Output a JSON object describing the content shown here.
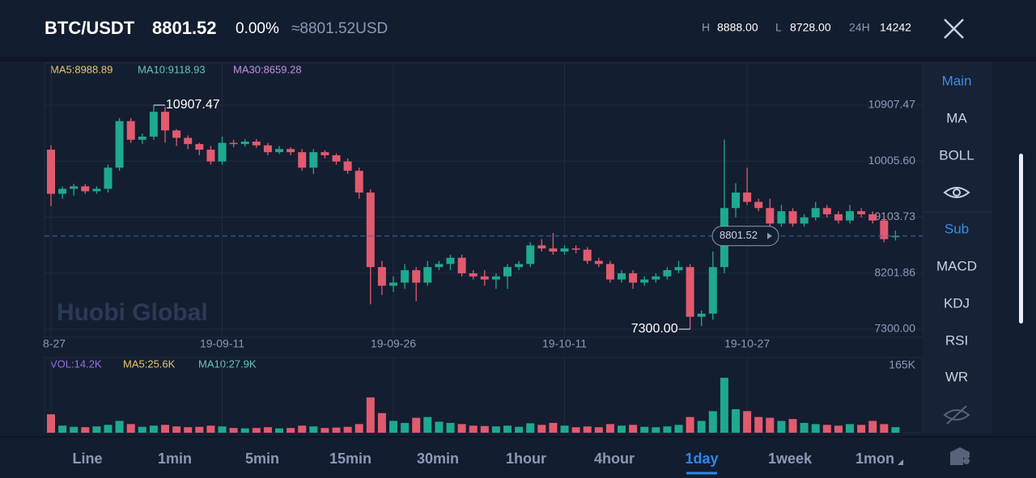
{
  "header": {
    "pair": "BTC/USDT",
    "price": "8801.52",
    "change": "0.00%",
    "usd": "≈8801.52USD",
    "high_label": "H",
    "high": "8888.00",
    "low_label": "L",
    "low": "8728.00",
    "vol_label": "24H",
    "vol": "14242"
  },
  "legend": {
    "ma5": "MA5:8988.89",
    "ma10": "MA10:9118.93",
    "ma30": "MA30:8659.28"
  },
  "vol_legend": {
    "vol": "VOL:14.2K",
    "ma5": "MA5:25.6K",
    "ma10": "MA10:27.9K"
  },
  "watermark": "Huobi Global",
  "sidebar": [
    "Main",
    "MA",
    "BOLL",
    "Sub",
    "MACD",
    "KDJ",
    "RSI",
    "WR"
  ],
  "tabs": [
    "Line",
    "1min",
    "5min",
    "15min",
    "30min",
    "1hour",
    "4hour",
    "1day",
    "1week",
    "1mon"
  ],
  "chart_data": {
    "type": "candlestick",
    "categories": [
      "8-27",
      null,
      null,
      null,
      null,
      null,
      null,
      null,
      null,
      null,
      null,
      null,
      null,
      null,
      null,
      "19-09-11",
      null,
      null,
      null,
      null,
      null,
      null,
      null,
      null,
      null,
      null,
      null,
      null,
      null,
      null,
      "19-09-26",
      null,
      null,
      null,
      null,
      null,
      null,
      null,
      null,
      null,
      null,
      null,
      null,
      null,
      null,
      "19-10-11",
      null,
      null,
      null,
      null,
      null,
      null,
      null,
      null,
      null,
      null,
      null,
      null,
      null,
      null,
      null,
      "19-10-27",
      null,
      null,
      null,
      null,
      null,
      null,
      null,
      null,
      null,
      null,
      null,
      null,
      null
    ],
    "open": [
      10190,
      9480,
      9560,
      9600,
      9520,
      9560,
      9900,
      10650,
      10350,
      10400,
      10800,
      10500,
      10380,
      10280,
      10190,
      10000,
      10300,
      10280,
      10320,
      10260,
      10150,
      10200,
      10150,
      9900,
      10150,
      10100,
      10000,
      9850,
      9500,
      8300,
      8000,
      8050,
      8250,
      8050,
      8300,
      8350,
      8450,
      8200,
      8150,
      8100,
      8150,
      8300,
      8350,
      8650,
      8600,
      8550,
      8600,
      8580,
      8400,
      8350,
      8100,
      8200,
      8050,
      8100,
      8150,
      8250,
      8300,
      7500,
      7550,
      8300,
      9250,
      9500,
      9350,
      9250,
      9000,
      9200,
      9000,
      9100,
      9250,
      9150,
      9050,
      9200,
      9150,
      9050,
      8800
    ],
    "high": [
      10260,
      9600,
      9640,
      9640,
      9600,
      9950,
      10700,
      10700,
      10450,
      10907.47,
      10880,
      10520,
      10420,
      10300,
      10250,
      10400,
      10350,
      10360,
      10360,
      10300,
      10250,
      10230,
      10200,
      10200,
      10180,
      10130,
      10050,
      9900,
      9550,
      8400,
      8150,
      8350,
      8300,
      8400,
      8400,
      8500,
      8500,
      8250,
      8250,
      8200,
      8350,
      8400,
      8700,
      8750,
      8850,
      8650,
      8650,
      8620,
      8450,
      8400,
      8250,
      8250,
      8150,
      8200,
      8300,
      8400,
      8350,
      7600,
      8550,
      10350,
      9650,
      9900,
      9400,
      9400,
      9300,
      9250,
      9150,
      9350,
      9300,
      9200,
      9300,
      9250,
      9200,
      9100,
      8888
    ],
    "low": [
      9280,
      9400,
      9450,
      9480,
      9480,
      9500,
      9850,
      10300,
      10280,
      10350,
      10300,
      10250,
      10200,
      10100,
      9950,
      9950,
      10230,
      10240,
      10220,
      10100,
      10120,
      10100,
      9850,
      9800,
      10050,
      9950,
      9800,
      9400,
      7700,
      7850,
      7900,
      7950,
      7750,
      8000,
      8250,
      8250,
      8150,
      8100,
      8000,
      7950,
      7950,
      8250,
      8300,
      8550,
      8500,
      8500,
      8520,
      8350,
      8300,
      8050,
      8050,
      7950,
      8000,
      8050,
      8100,
      8200,
      7300,
      7350,
      7450,
      8200,
      9100,
      9300,
      9200,
      8950,
      8950,
      8950,
      8950,
      9050,
      9100,
      9000,
      9000,
      9100,
      9000,
      8700,
      8728
    ],
    "close": [
      9480,
      9560,
      9600,
      9520,
      9560,
      9900,
      10650,
      10350,
      10400,
      10800,
      10500,
      10380,
      10280,
      10190,
      10000,
      10300,
      10280,
      10320,
      10260,
      10150,
      10200,
      10150,
      9900,
      10150,
      10100,
      10000,
      9850,
      9500,
      8300,
      8000,
      8050,
      8250,
      8050,
      8300,
      8350,
      8450,
      8200,
      8150,
      8100,
      8150,
      8300,
      8350,
      8650,
      8600,
      8550,
      8600,
      8580,
      8400,
      8350,
      8100,
      8200,
      8050,
      8100,
      8150,
      8250,
      8300,
      7500,
      7550,
      8300,
      9250,
      9500,
      9350,
      9250,
      9000,
      9200,
      9000,
      9100,
      9250,
      9150,
      9050,
      9200,
      9150,
      9050,
      8750,
      8801.52
    ],
    "volume": [
      47000,
      18000,
      15000,
      14000,
      16000,
      20000,
      30000,
      22000,
      15000,
      18000,
      20000,
      16000,
      14000,
      15000,
      18000,
      16000,
      12000,
      11000,
      12000,
      14000,
      11000,
      12000,
      18000,
      16000,
      12000,
      13000,
      15000,
      22000,
      90000,
      50000,
      30000,
      25000,
      38000,
      40000,
      28000,
      25000,
      22000,
      18000,
      17000,
      16000,
      18000,
      15000,
      24000,
      20000,
      25000,
      18000,
      14000,
      16000,
      14000,
      22000,
      18000,
      20000,
      15000,
      14000,
      16000,
      20000,
      40000,
      30000,
      55000,
      140000,
      60000,
      55000,
      40000,
      38000,
      30000,
      35000,
      25000,
      22000,
      20000,
      18000,
      22000,
      20000,
      30000,
      22000,
      14200
    ],
    "ylim": [
      7170,
      11584
    ],
    "yticks": [
      10907.47,
      {
        "value": 10005.6,
        "label": "10005.60"
      },
      9103.73,
      8201.86,
      {
        "value": 7300,
        "label": "7300.00"
      }
    ],
    "vol_ylim": [
      0,
      165000
    ],
    "vol_yticks": [
      {
        "value": 165000,
        "label": "165K"
      }
    ],
    "up_color": "#1fa98e",
    "down_color": "#e25a6e",
    "max_label": "10907.47",
    "min_label": "7300.00",
    "price_tag": "8801.52",
    "grid": true
  }
}
